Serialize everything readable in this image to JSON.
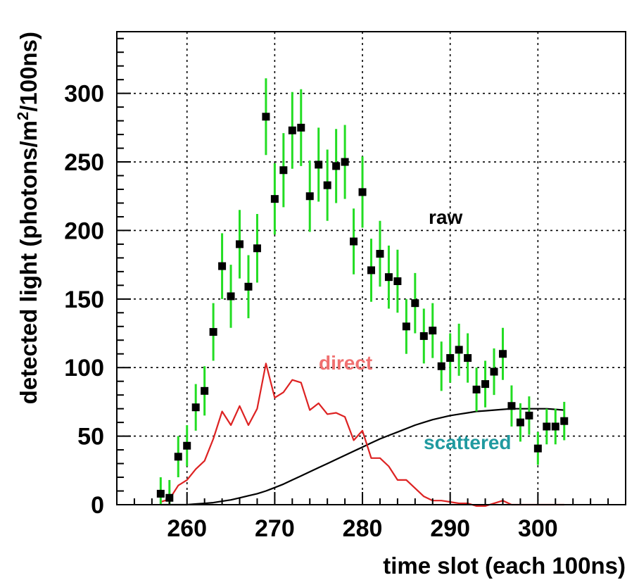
{
  "chart_data": {
    "type": "scatter",
    "xlabel": "time slot (each 100ns)",
    "ylabel_prefix": "detected light (photons/m",
    "ylabel_sup": "2",
    "ylabel_suffix": "/100ns)",
    "xlim": [
      252,
      310
    ],
    "ylim": [
      0,
      345
    ],
    "grid": true,
    "xticks": [
      260,
      270,
      280,
      290,
      300
    ],
    "yticks": [
      0,
      50,
      100,
      150,
      200,
      250,
      300
    ],
    "colors": {
      "errorbar": "#22dd22",
      "marker": "#000000",
      "direct": "#dd2222",
      "scattered": "#000000",
      "label_raw": "#000000",
      "label_direct": "#f07070",
      "label_scattered": "#209aa0"
    },
    "annotations": {
      "raw": "raw",
      "direct": "direct",
      "scattered": "scattered"
    },
    "series": [
      {
        "kind": "points_with_errors",
        "x": [
          257,
          258,
          259,
          260,
          261,
          262,
          263,
          264,
          265,
          266,
          267,
          268,
          269,
          270,
          271,
          272,
          273,
          274,
          275,
          276,
          277,
          278,
          279,
          280,
          281,
          282,
          283,
          284,
          285,
          286,
          287,
          288,
          289,
          290,
          291,
          292,
          293,
          294,
          295,
          296,
          297,
          298,
          299,
          300,
          301,
          302,
          303
        ],
        "y": [
          8,
          5,
          35,
          43,
          71,
          83,
          126,
          174,
          152,
          190,
          159,
          187,
          283,
          223,
          244,
          273,
          275,
          225,
          248,
          233,
          247,
          250,
          192,
          228,
          171,
          183,
          166,
          163,
          130,
          147,
          123,
          127,
          101,
          107,
          113,
          107,
          84,
          88,
          97,
          110,
          72,
          60,
          65,
          41,
          57,
          57,
          61
        ],
        "err": [
          12,
          13,
          15,
          15,
          17,
          18,
          21,
          24,
          23,
          25,
          23,
          25,
          28,
          26,
          27,
          28,
          28,
          26,
          27,
          26,
          27,
          27,
          24,
          26,
          23,
          24,
          23,
          23,
          20,
          22,
          20,
          20,
          18,
          18,
          19,
          18,
          16,
          17,
          17,
          19,
          15,
          14,
          14,
          12,
          13,
          13,
          14
        ]
      },
      {
        "name": "direct",
        "kind": "line",
        "x": [
          257,
          258,
          259,
          260,
          261,
          262,
          263,
          264,
          265,
          266,
          267,
          268,
          269,
          270,
          271,
          272,
          273,
          274,
          275,
          276,
          277,
          278,
          279,
          280,
          281,
          282,
          283,
          284,
          285,
          286,
          287,
          288,
          289,
          290,
          291,
          292,
          293,
          294,
          295,
          296,
          297,
          298,
          299,
          300,
          301,
          302,
          303
        ],
        "y": [
          2,
          4,
          14,
          18,
          26,
          32,
          48,
          68,
          58,
          72,
          58,
          70,
          103,
          78,
          82,
          91,
          89,
          69,
          74,
          66,
          67,
          64,
          47,
          54,
          34,
          34,
          28,
          18,
          18,
          12,
          6,
          3,
          3,
          2,
          1,
          1,
          -1,
          -1,
          1,
          3,
          0,
          0,
          0,
          0,
          0,
          0,
          0
        ]
      },
      {
        "name": "scattered",
        "kind": "line",
        "x": [
          257,
          258,
          259,
          260,
          261,
          262,
          263,
          264,
          265,
          266,
          267,
          268,
          269,
          270,
          271,
          272,
          273,
          274,
          275,
          276,
          277,
          278,
          279,
          280,
          281,
          282,
          283,
          284,
          285,
          286,
          287,
          288,
          289,
          290,
          291,
          292,
          293,
          294,
          295,
          296,
          297,
          298,
          299,
          300,
          301,
          302,
          303
        ],
        "y": [
          0,
          0,
          0,
          0,
          0.5,
          1,
          1.5,
          2.5,
          3.5,
          5,
          6.5,
          8,
          10,
          12.5,
          15,
          18,
          21,
          24,
          27,
          30,
          33,
          36,
          39,
          42,
          45,
          48,
          50.5,
          53,
          55.5,
          58,
          60,
          62,
          63.5,
          65,
          66,
          67,
          68,
          68.5,
          69,
          69.5,
          70,
          70,
          70,
          70,
          70,
          69.5,
          69
        ]
      }
    ]
  }
}
